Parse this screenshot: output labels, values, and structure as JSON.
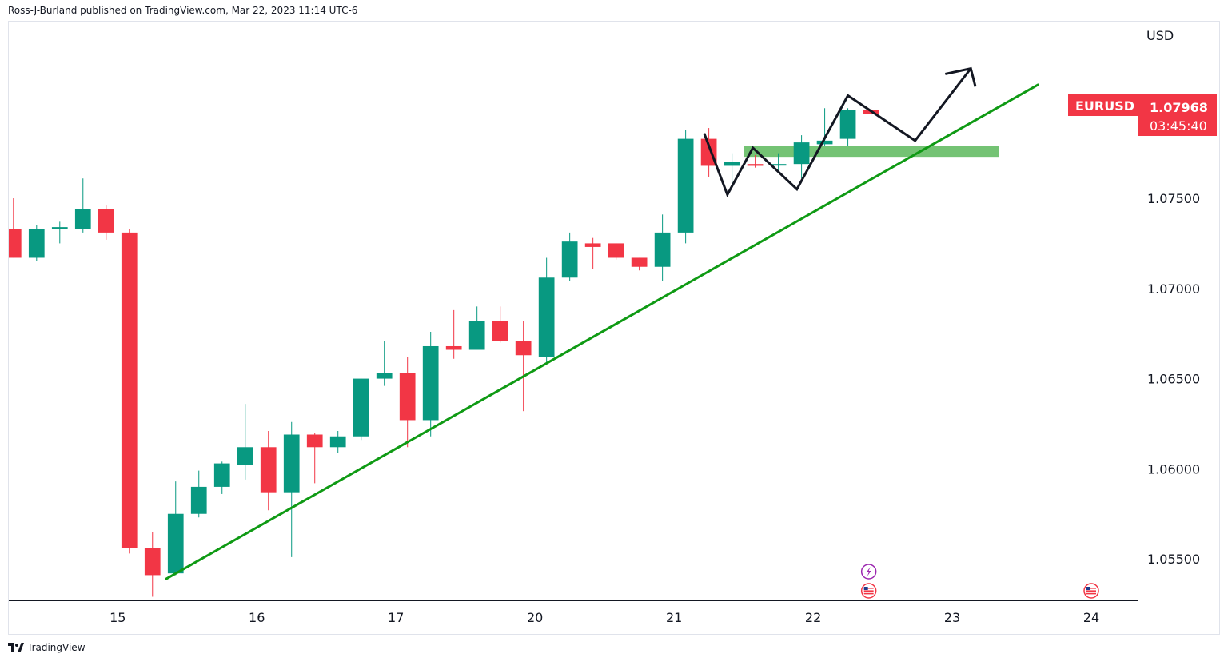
{
  "header": {
    "published_by": "Ross-J-Burland published on TradingView.com, Mar 22, 2023 11:14 UTC-6"
  },
  "footer": {
    "brand": "TradingView",
    "logo_icon": "tradingview-logo-icon"
  },
  "colors": {
    "bull": "#089981",
    "bear": "#f23645",
    "trendline": "#0f9a14",
    "zone": "#5cb85c",
    "projection": "#131722",
    "price_line": "#f23645",
    "axis_text": "#131722",
    "event_lightning": "#9c27b0"
  },
  "chart_data": {
    "type": "candlestick",
    "symbol": "EURUSD",
    "currency": "USD",
    "last_price": "1.07968",
    "countdown": "03:45:40",
    "ylim": [
      1.0527,
      1.0848
    ],
    "y_ticks": [
      {
        "value": 1.075,
        "label": "1.07500"
      },
      {
        "value": 1.07,
        "label": "1.07000"
      },
      {
        "value": 1.065,
        "label": "1.06500"
      },
      {
        "value": 1.06,
        "label": "1.06000"
      },
      {
        "value": 1.055,
        "label": "1.05500"
      }
    ],
    "x_ticks": [
      {
        "label": "15",
        "index": 4.5
      },
      {
        "label": "16",
        "index": 10.5
      },
      {
        "label": "17",
        "index": 16.5
      },
      {
        "label": "20",
        "index": 22.5
      },
      {
        "label": "21",
        "index": 28.5
      },
      {
        "label": "22",
        "index": 34.5
      },
      {
        "label": "23",
        "index": 40.5
      },
      {
        "label": "24",
        "index": 46.5
      }
    ],
    "xlim": [
      -0.2,
      48.5
    ],
    "candles": [
      {
        "o": 1.0733,
        "h": 1.075,
        "l": 1.0717,
        "c": 1.0717
      },
      {
        "o": 1.0717,
        "h": 1.0735,
        "l": 1.0715,
        "c": 1.0733
      },
      {
        "o": 1.0733,
        "h": 1.0737,
        "l": 1.0725,
        "c": 1.0734
      },
      {
        "o": 1.0733,
        "h": 1.0761,
        "l": 1.0731,
        "c": 1.0744
      },
      {
        "o": 1.0744,
        "h": 1.0746,
        "l": 1.0727,
        "c": 1.0731
      },
      {
        "o": 1.0731,
        "h": 1.0733,
        "l": 1.0553,
        "c": 1.0556
      },
      {
        "o": 1.0556,
        "h": 1.0565,
        "l": 1.0529,
        "c": 1.0541
      },
      {
        "o": 1.0542,
        "h": 1.0593,
        "l": 1.0541,
        "c": 1.0575
      },
      {
        "o": 1.0575,
        "h": 1.0599,
        "l": 1.0573,
        "c": 1.059
      },
      {
        "o": 1.059,
        "h": 1.0604,
        "l": 1.0586,
        "c": 1.0603
      },
      {
        "o": 1.0602,
        "h": 1.0636,
        "l": 1.0594,
        "c": 1.0612
      },
      {
        "o": 1.0612,
        "h": 1.0621,
        "l": 1.0577,
        "c": 1.0587
      },
      {
        "o": 1.0587,
        "h": 1.0626,
        "l": 1.0551,
        "c": 1.0619
      },
      {
        "o": 1.0619,
        "h": 1.062,
        "l": 1.0592,
        "c": 1.0612
      },
      {
        "o": 1.0612,
        "h": 1.0621,
        "l": 1.0609,
        "c": 1.0618
      },
      {
        "o": 1.0618,
        "h": 1.065,
        "l": 1.0616,
        "c": 1.065
      },
      {
        "o": 1.065,
        "h": 1.0671,
        "l": 1.0646,
        "c": 1.0653
      },
      {
        "o": 1.0653,
        "h": 1.0662,
        "l": 1.0612,
        "c": 1.0627
      },
      {
        "o": 1.0627,
        "h": 1.0676,
        "l": 1.0618,
        "c": 1.0668
      },
      {
        "o": 1.0668,
        "h": 1.0688,
        "l": 1.0661,
        "c": 1.0666
      },
      {
        "o": 1.0666,
        "h": 1.069,
        "l": 1.0666,
        "c": 1.0682
      },
      {
        "o": 1.0682,
        "h": 1.069,
        "l": 1.067,
        "c": 1.0671
      },
      {
        "o": 1.0671,
        "h": 1.0682,
        "l": 1.0632,
        "c": 1.0663
      },
      {
        "o": 1.0662,
        "h": 1.0717,
        "l": 1.0658,
        "c": 1.0706
      },
      {
        "o": 1.0706,
        "h": 1.0731,
        "l": 1.0704,
        "c": 1.0726
      },
      {
        "o": 1.0725,
        "h": 1.0728,
        "l": 1.0711,
        "c": 1.0723
      },
      {
        "o": 1.0725,
        "h": 1.0725,
        "l": 1.0716,
        "c": 1.0717
      },
      {
        "o": 1.0717,
        "h": 1.0717,
        "l": 1.071,
        "c": 1.0712
      },
      {
        "o": 1.0712,
        "h": 1.0741,
        "l": 1.0704,
        "c": 1.0731
      },
      {
        "o": 1.0731,
        "h": 1.0788,
        "l": 1.0725,
        "c": 1.0783
      },
      {
        "o": 1.0783,
        "h": 1.0789,
        "l": 1.0762,
        "c": 1.0768
      },
      {
        "o": 1.0768,
        "h": 1.0775,
        "l": 1.0758,
        "c": 1.077
      },
      {
        "o": 1.0769,
        "h": 1.0774,
        "l": 1.0767,
        "c": 1.0768
      },
      {
        "o": 1.0769,
        "h": 1.0775,
        "l": 1.0765,
        "c": 1.0769
      },
      {
        "o": 1.0769,
        "h": 1.0785,
        "l": 1.0761,
        "c": 1.0781
      },
      {
        "o": 1.078,
        "h": 1.08,
        "l": 1.0779,
        "c": 1.0782
      },
      {
        "o": 1.0783,
        "h": 1.08,
        "l": 1.0779,
        "c": 1.0799
      },
      {
        "o": 1.0799,
        "h": 1.08,
        "l": 1.0796,
        "c": 1.0797
      }
    ],
    "annotations": {
      "trendline": {
        "from": {
          "index": 6.6,
          "price": 1.0539
        },
        "to": {
          "index": 44.2,
          "price": 1.0813
        }
      },
      "support_zone": {
        "from_index": 31.5,
        "to_index": 42.5,
        "top": 1.0779,
        "bottom": 1.0773
      },
      "projection_path": [
        {
          "index": 29.8,
          "price": 1.0786
        },
        {
          "index": 30.8,
          "price": 1.0752
        },
        {
          "index": 31.9,
          "price": 1.0778
        },
        {
          "index": 33.8,
          "price": 1.0755
        },
        {
          "index": 36.0,
          "price": 1.0807
        },
        {
          "index": 38.9,
          "price": 1.0782
        },
        {
          "index": 41.3,
          "price": 1.0822
        }
      ],
      "projection_arrow_head": [
        {
          "index": 40.2,
          "price": 1.0819
        },
        {
          "index": 41.3,
          "price": 1.0822
        },
        {
          "index": 41.5,
          "price": 1.0812
        }
      ],
      "events": [
        {
          "index": 36.9,
          "icon": "lightning-event-icon"
        },
        {
          "index": 36.9,
          "icon": "us-flag-event-icon"
        },
        {
          "index": 46.5,
          "icon": "us-flag-event-icon"
        }
      ]
    }
  }
}
